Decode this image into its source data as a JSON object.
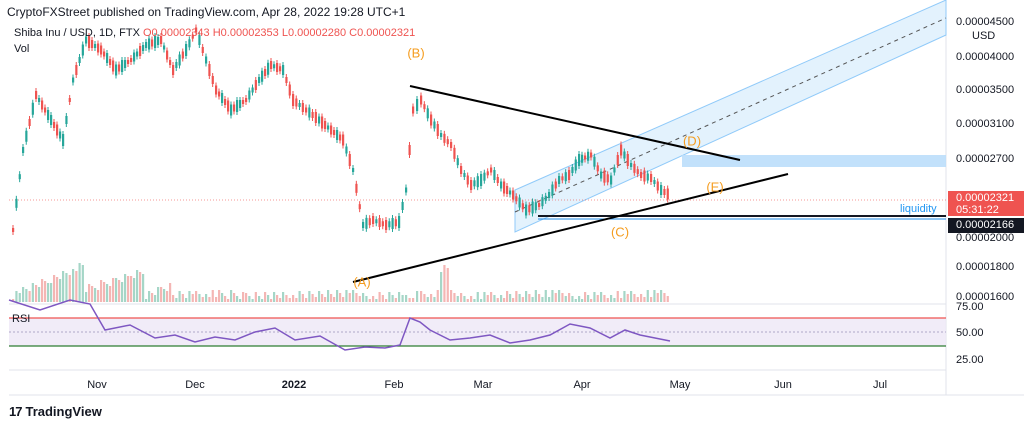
{
  "header": {
    "publisher": "CryptoFXStreet published on TradingView.com, Apr 28, 2022 19:28 UTC+1"
  },
  "legend": {
    "symbol": "Shiba Inu / USD, 1D, FTX",
    "ohlc": "O0.00002343 H0.00002353 L0.00002280 C0.00002321",
    "vol_label": "Vol",
    "rsi_label": "RSI"
  },
  "price_axis": {
    "unit": "USD",
    "ticks": [
      "0.00004500",
      "0.00004000",
      "0.00003500",
      "0.00003100",
      "0.00002700",
      "0.00002000",
      "0.00001800",
      "0.00001600"
    ],
    "last_price": "0.00002321",
    "countdown": "05:31:22",
    "liquidity_price": "0.00002166",
    "liquidity_label": "liquidity"
  },
  "rsi_axis": {
    "ticks": [
      "75.00",
      "50.00",
      "25.00"
    ]
  },
  "time_axis": {
    "ticks": [
      "Nov",
      "Dec",
      "2022",
      "Feb",
      "Mar",
      "Apr",
      "May",
      "Jun",
      "Jul"
    ]
  },
  "waves": {
    "A": "(A)",
    "B": "(B)",
    "C": "(C)",
    "D": "(D)",
    "E": "(E)"
  },
  "footer": {
    "brand": "TradingView"
  },
  "colors": {
    "up": "#26a69a",
    "down": "#ef5350",
    "rsi": "#7e57c2",
    "trend": "#000000",
    "wave": "#f59d20",
    "channel": "#90caf9"
  }
}
